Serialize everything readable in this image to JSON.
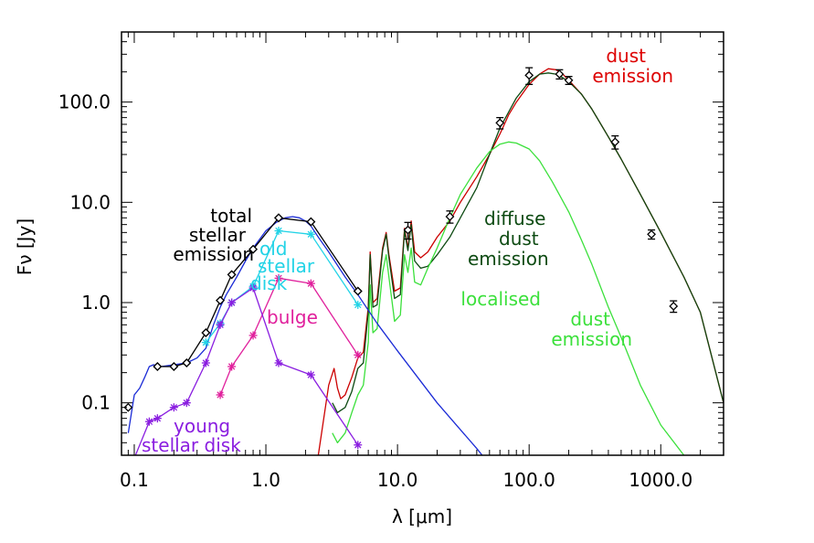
{
  "chart_data": {
    "type": "line",
    "title": "",
    "xlabel": "λ [μm]",
    "ylabel": "Fν [Jy]",
    "x_scale": "log",
    "y_scale": "log",
    "xlim": [
      0.08,
      3000
    ],
    "ylim": [
      0.03,
      500
    ],
    "x_ticks": [
      {
        "value": 0.1,
        "label": "0.1"
      },
      {
        "value": 1,
        "label": "1.0"
      },
      {
        "value": 10,
        "label": "10.0"
      },
      {
        "value": 100,
        "label": "100.0"
      },
      {
        "value": 1000,
        "label": "1000.0"
      }
    ],
    "y_ticks": [
      {
        "value": 0.1,
        "label": "0.1"
      },
      {
        "value": 1,
        "label": "1.0"
      },
      {
        "value": 10,
        "label": "10.0"
      },
      {
        "value": 100,
        "label": "100.0"
      }
    ],
    "grid": false,
    "legend": "none",
    "annotations": [
      {
        "id": "total-stellar",
        "lines": [
          "total",
          "stellar",
          "emission"
        ],
        "color": "#000000",
        "align": "end"
      },
      {
        "id": "old-stellar-disk",
        "lines": [
          "old",
          "stellar",
          "disk"
        ],
        "color": "#22d3e6",
        "align": "start"
      },
      {
        "id": "bulge",
        "lines": [
          "bulge"
        ],
        "color": "#e0209c",
        "align": "start"
      },
      {
        "id": "young-stellar-disk",
        "lines": [
          "young",
          "stellar disk"
        ],
        "color": "#8a1ee0",
        "align": "start"
      },
      {
        "id": "dust-emission",
        "lines": [
          "dust",
          "emission"
        ],
        "color": "#dd0000",
        "align": "end"
      },
      {
        "id": "diffuse-dust",
        "lines": [
          "diffuse",
          "dust",
          "emission"
        ],
        "color": "#0d4a12",
        "align": "start"
      },
      {
        "id": "localised-dust",
        "lines": [
          "localised",
          "dust",
          "emission"
        ],
        "color": "#3be03b",
        "align": "end"
      }
    ],
    "series": [
      {
        "id": "total-model",
        "color": "#cc0000",
        "style": "line",
        "x": [
          2.5,
          3,
          3.3,
          3.5,
          3.7,
          4,
          4.5,
          5,
          5.5,
          6,
          6.2,
          6.5,
          7,
          7.7,
          8.2,
          8.6,
          9.5,
          10.5,
          11.3,
          12,
          12.7,
          13.5,
          15,
          17,
          20,
          25,
          30,
          40,
          50,
          60,
          70,
          80,
          100,
          120,
          140,
          160,
          180,
          200,
          250,
          300,
          400,
          500,
          700,
          1000,
          1500,
          2000,
          3000
        ],
        "y": [
          0.03,
          0.15,
          0.22,
          0.14,
          0.11,
          0.12,
          0.18,
          0.28,
          0.32,
          0.9,
          3.2,
          1.0,
          1.1,
          3.5,
          5.0,
          3.0,
          1.3,
          1.4,
          5.5,
          3.5,
          6.5,
          3.2,
          2.8,
          3.2,
          4.5,
          6.5,
          10,
          18,
          30,
          48,
          75,
          100,
          150,
          190,
          215,
          210,
          190,
          165,
          120,
          85,
          45,
          27,
          12,
          5,
          1.8,
          0.8,
          0.1
        ]
      },
      {
        "id": "diffuse-dust-model",
        "color": "#0d4a12",
        "style": "line",
        "x": [
          3.2,
          3.5,
          4,
          4.5,
          5,
          5.5,
          6,
          6.2,
          6.5,
          7,
          7.7,
          8.2,
          8.6,
          9.5,
          10.5,
          11.3,
          12,
          12.7,
          13.5,
          15,
          17,
          20,
          25,
          30,
          40,
          50,
          60,
          80,
          100,
          120,
          140,
          160,
          180,
          200,
          250,
          300,
          400,
          500,
          700,
          1000,
          1500,
          2000,
          3000
        ],
        "y": [
          0.1,
          0.08,
          0.09,
          0.13,
          0.22,
          0.25,
          0.8,
          3.0,
          0.9,
          0.95,
          3.3,
          4.8,
          2.8,
          1.1,
          1.2,
          5.2,
          3.3,
          6.0,
          2.6,
          2.2,
          2.3,
          3.0,
          4.5,
          7,
          14,
          30,
          55,
          110,
          160,
          190,
          195,
          190,
          175,
          160,
          120,
          85,
          45,
          27,
          12,
          5,
          1.8,
          0.8,
          0.1
        ]
      },
      {
        "id": "localised-dust-model",
        "color": "#3be03b",
        "style": "line",
        "x": [
          3.2,
          3.5,
          4,
          4.5,
          5,
          5.5,
          6,
          6.2,
          6.5,
          7,
          7.7,
          8.2,
          8.6,
          9.5,
          10.5,
          11.3,
          12,
          12.7,
          13.5,
          15,
          17,
          20,
          25,
          30,
          40,
          50,
          60,
          70,
          80,
          100,
          120,
          150,
          200,
          250,
          300,
          400,
          500,
          700,
          1000,
          1500
        ],
        "y": [
          0.05,
          0.04,
          0.05,
          0.08,
          0.12,
          0.15,
          0.4,
          1.5,
          0.5,
          0.55,
          2.0,
          3.0,
          1.8,
          0.65,
          0.75,
          3.0,
          2.0,
          3.5,
          1.6,
          1.5,
          2.2,
          3.5,
          7,
          12,
          22,
          32,
          38,
          40,
          39,
          34,
          26,
          16,
          8,
          4.2,
          2.4,
          0.9,
          0.45,
          0.15,
          0.06,
          0.03
        ]
      },
      {
        "id": "stellar-model",
        "color": "#1a2ad6",
        "style": "line",
        "x": [
          0.09,
          0.1,
          0.11,
          0.12,
          0.13,
          0.14,
          0.16,
          0.2,
          0.25,
          0.3,
          0.35,
          0.4,
          0.45,
          0.5,
          0.6,
          0.7,
          0.8,
          0.9,
          1.0,
          1.2,
          1.4,
          1.6,
          1.8,
          2.0,
          2.2,
          2.5,
          3,
          4,
          5,
          7,
          10,
          20,
          40,
          60
        ],
        "y": [
          0.05,
          0.12,
          0.14,
          0.18,
          0.23,
          0.24,
          0.23,
          0.24,
          0.25,
          0.28,
          0.35,
          0.6,
          0.9,
          1.2,
          1.8,
          2.6,
          3.5,
          4.3,
          5.2,
          6.3,
          7.0,
          7.2,
          7.0,
          6.5,
          5.8,
          4.5,
          3.2,
          1.8,
          1.2,
          0.62,
          0.33,
          0.1,
          0.035,
          0.018
        ]
      },
      {
        "id": "total-stellar",
        "color": "#000000",
        "style": "line-diamond",
        "x": [
          0.15,
          0.2,
          0.25,
          0.35,
          0.45,
          0.55,
          0.8,
          1.25,
          2.2,
          5.0
        ],
        "y": [
          0.23,
          0.23,
          0.25,
          0.5,
          1.05,
          1.9,
          3.4,
          7.0,
          6.4,
          1.3
        ]
      },
      {
        "id": "old-stellar-disk",
        "color": "#22d3e6",
        "style": "line-star",
        "x": [
          0.35,
          0.45,
          0.55,
          0.8,
          1.25,
          2.2,
          5.0
        ],
        "y": [
          0.4,
          0.62,
          1.0,
          1.45,
          5.2,
          4.8,
          0.95
        ]
      },
      {
        "id": "bulge",
        "color": "#e0209c",
        "style": "line-star",
        "x": [
          0.45,
          0.55,
          0.8,
          1.25,
          2.2,
          5.0
        ],
        "y": [
          0.12,
          0.23,
          0.47,
          1.75,
          1.55,
          0.3
        ]
      },
      {
        "id": "young-stellar-disk",
        "color": "#8a1ee0",
        "style": "line-star",
        "x": [
          0.09,
          0.13,
          0.15,
          0.2,
          0.25,
          0.35,
          0.45,
          0.55,
          0.8,
          1.25,
          2.2,
          5.0
        ],
        "y": [
          0.02,
          0.065,
          0.07,
          0.09,
          0.1,
          0.25,
          0.6,
          1.0,
          1.4,
          0.25,
          0.19,
          0.038
        ]
      },
      {
        "id": "observations",
        "color": "#000000",
        "style": "diamond-errorbar",
        "x": [
          0.09,
          0.15,
          0.2,
          0.25,
          0.35,
          0.45,
          0.55,
          0.8,
          1.25,
          2.2,
          5.0,
          12,
          25,
          60,
          100,
          170,
          200,
          450,
          850,
          1250
        ],
        "y": [
          0.09,
          0.23,
          0.23,
          0.25,
          0.5,
          1.05,
          1.9,
          3.4,
          7.0,
          6.4,
          1.3,
          5.3,
          7.2,
          62,
          185,
          190,
          165,
          40,
          4.8,
          0.92
        ],
        "err": [
          0,
          0,
          0,
          0,
          0,
          0,
          0,
          0,
          0,
          0,
          0,
          1.0,
          1.0,
          8,
          35,
          20,
          15,
          6,
          0.5,
          0.12
        ]
      }
    ]
  }
}
